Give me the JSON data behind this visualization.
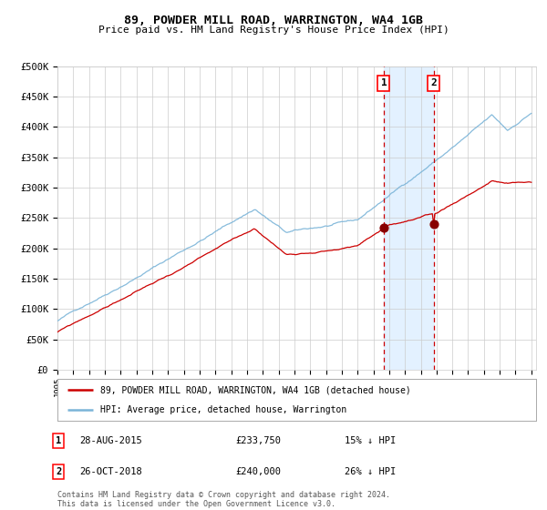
{
  "title": "89, POWDER MILL ROAD, WARRINGTON, WA4 1GB",
  "subtitle": "Price paid vs. HM Land Registry's House Price Index (HPI)",
  "legend_line1": "89, POWDER MILL ROAD, WARRINGTON, WA4 1GB (detached house)",
  "legend_line2": "HPI: Average price, detached house, Warrington",
  "annotation1": {
    "label": "1",
    "date": "28-AUG-2015",
    "price": 233750,
    "pct": "15% ↓ HPI"
  },
  "annotation2": {
    "label": "2",
    "date": "26-OCT-2018",
    "price": 240000,
    "pct": "26% ↓ HPI"
  },
  "footnote": "Contains HM Land Registry data © Crown copyright and database right 2024.\nThis data is licensed under the Open Government Licence v3.0.",
  "ylim": [
    0,
    500000
  ],
  "yticks": [
    0,
    50000,
    100000,
    150000,
    200000,
    250000,
    300000,
    350000,
    400000,
    450000,
    500000
  ],
  "hpi_color": "#7ab4d8",
  "price_color": "#cc0000",
  "marker_color": "#880000",
  "bg_color": "#ffffff",
  "grid_color": "#cccccc",
  "shade_color": "#ddeeff",
  "dashed_color": "#cc0000",
  "sale1_year": 2015.66,
  "sale2_year": 2018.82,
  "sale1_price": 233750,
  "sale2_price": 240000
}
